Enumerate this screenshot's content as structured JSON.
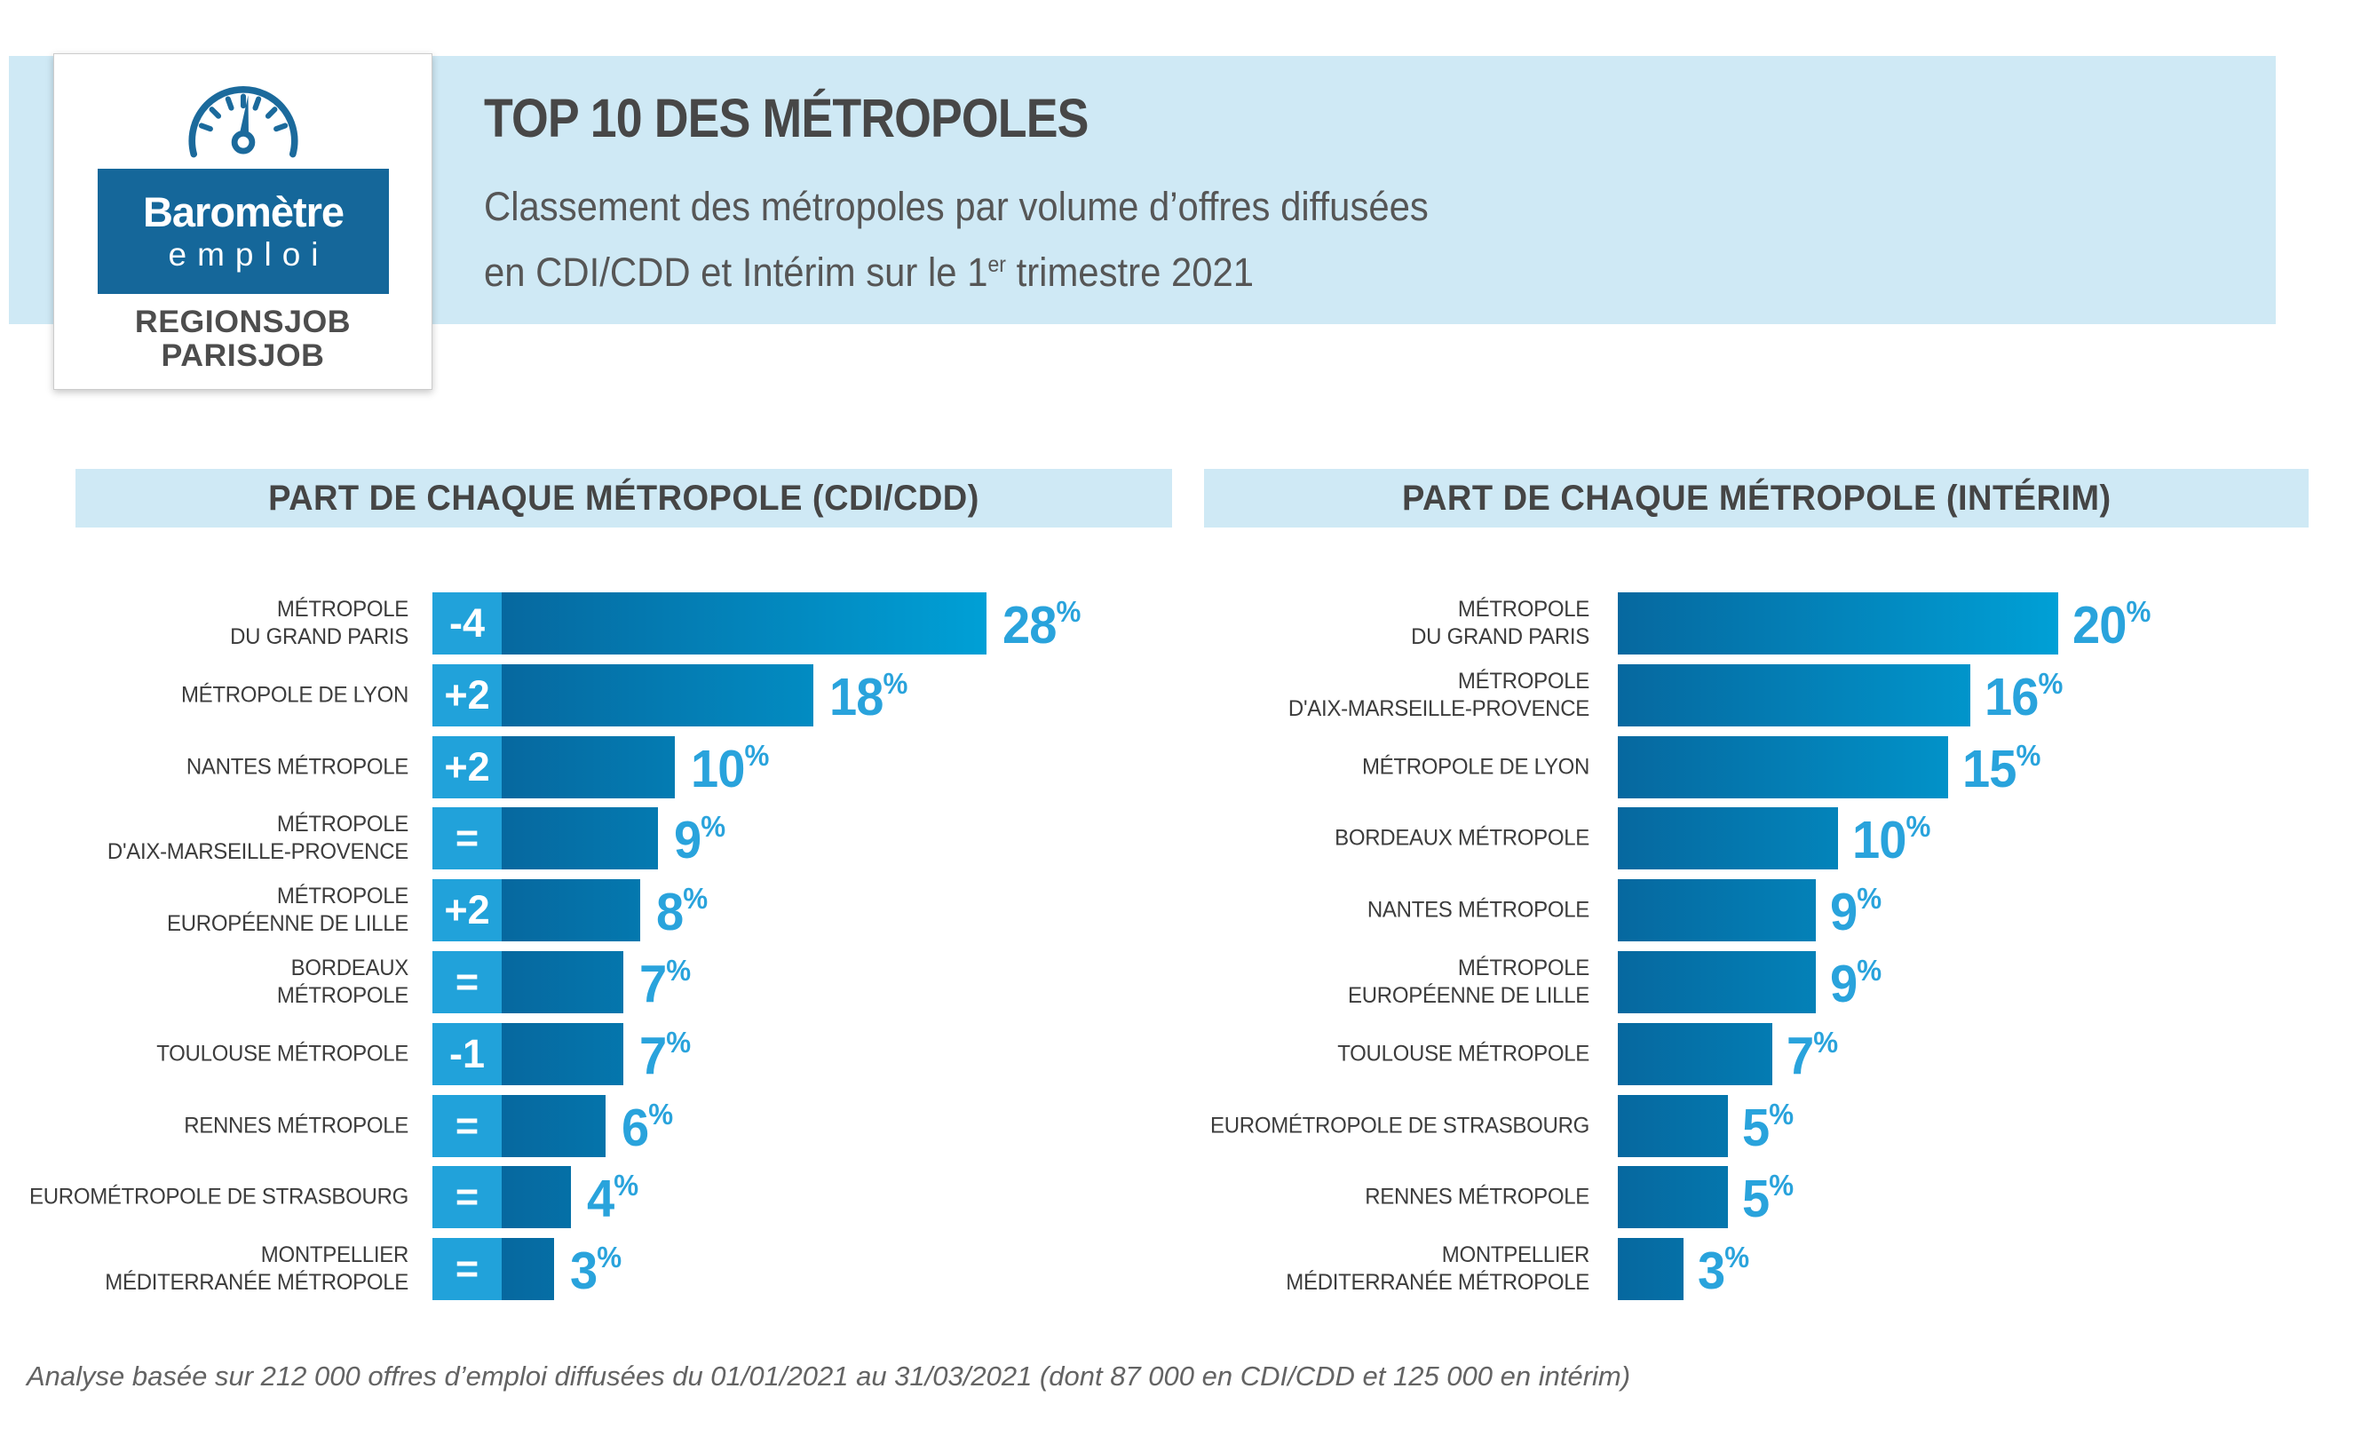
{
  "logo": {
    "brand_line1": "Baromètre",
    "brand_line2": "emploi",
    "site_line1": "REGIONSJOB",
    "site_line2": "PARISJOB"
  },
  "header": {
    "title": "TOP 10 DES MÉTROPOLES",
    "subtitle_line1": "Classement des métropoles par volume d’offres diffusées",
    "subtitle_line2_prefix": "en CDI/CDD et Intérim sur le 1",
    "subtitle_superscript": "er",
    "subtitle_line2_suffix": " trimestre 2021"
  },
  "sections": {
    "left_title": "PART DE CHAQUE MÉTROPOLE (CDI/CDD)",
    "right_title": "PART DE CHAQUE MÉTROPOLE (INTÉRIM)"
  },
  "footer": {
    "note": "Analyse basée sur 212 000 offres d’emploi diffusées du 01/01/2021 au 31/03/2021 (dont 87 000 en CDI/CDD et 125 000 en intérim)"
  },
  "colors": {
    "header_band_blue": "#cfe9f5",
    "logo_box_blue": "#15679a",
    "title_gray": "#474747",
    "label_gray": "#3c3c3c",
    "badge_blue": "#21a2da",
    "bar_gradient_dark": "#06689f",
    "bar_gradient_light": "#00a0d6",
    "value_blue": "#29a3dc"
  },
  "chart_data": [
    {
      "type": "bar",
      "orientation": "horizontal",
      "title": "PART DE CHAQUE MÉTROPOLE (CDI/CDD)",
      "unit": "%",
      "categories": [
        "MÉTROPOLE\nDU GRAND PARIS",
        "MÉTROPOLE DE LYON",
        "NANTES MÉTROPOLE",
        "MÉTROPOLE\nD'AIX-MARSEILLE-PROVENCE",
        "MÉTROPOLE\nEUROPÉENNE DE LILLE",
        "BORDEAUX\nMÉTROPOLE",
        "TOULOUSE MÉTROPOLE",
        "RENNES MÉTROPOLE",
        "EUROMÉTROPOLE DE STRASBOURG",
        "MONTPELLIER\nMÉDITERRANÉE MÉTROPOLE"
      ],
      "values": [
        28,
        18,
        10,
        9,
        8,
        7,
        7,
        6,
        4,
        3
      ],
      "rank_changes": [
        "-4",
        "+2",
        "+2",
        "=",
        "+2",
        "=",
        "-1",
        "=",
        "=",
        "="
      ],
      "xlim": [
        0,
        28
      ],
      "grid": false,
      "legend": false
    },
    {
      "type": "bar",
      "orientation": "horizontal",
      "title": "PART DE CHAQUE MÉTROPOLE (INTÉRIM)",
      "unit": "%",
      "categories": [
        "MÉTROPOLE\nDU GRAND PARIS",
        "MÉTROPOLE\nD'AIX-MARSEILLE-PROVENCE",
        "MÉTROPOLE DE LYON",
        "BORDEAUX MÉTROPOLE",
        "NANTES MÉTROPOLE",
        "MÉTROPOLE\nEUROPÉENNE DE LILLE",
        "TOULOUSE MÉTROPOLE",
        "EUROMÉTROPOLE DE STRASBOURG",
        "RENNES MÉTROPOLE",
        "MONTPELLIER\nMÉDITERRANÉE MÉTROPOLE"
      ],
      "values": [
        20,
        16,
        15,
        10,
        9,
        9,
        7,
        5,
        5,
        3
      ],
      "xlim": [
        0,
        20
      ],
      "grid": false,
      "legend": false
    }
  ]
}
